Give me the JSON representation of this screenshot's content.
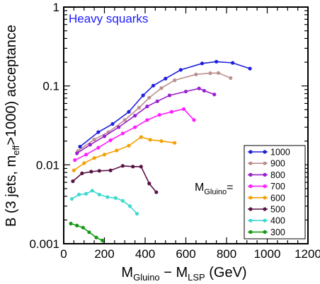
{
  "chart_data": {
    "type": "line",
    "annotation": "Heavy squarks",
    "xlabel": {
      "main": "M",
      "sub1": "Gluino",
      "mid": " − M",
      "sub2": "LSP",
      "tail": "  (GeV)"
    },
    "ylabel": {
      "pre": "B (3 jets, m",
      "sub": "eff",
      "post": ">1000) acceptance"
    },
    "xlim": [
      0,
      1200
    ],
    "ylim": [
      0.001,
      1
    ],
    "yscale": "log",
    "x_ticks": [
      "0",
      "200",
      "400",
      "600",
      "800",
      "1000",
      "1200"
    ],
    "y_ticks": [
      "1",
      "0.1",
      "0.01",
      "0.001"
    ],
    "legend_title": {
      "main": "M",
      "sub": "Gluino",
      "post": "="
    },
    "legend_position": "bottom-right",
    "series": [
      {
        "name": "1000",
        "color": "#1f1fdf",
        "x": [
          80,
          170,
          240,
          320,
          390,
          440,
          500,
          575,
          680,
          750,
          830,
          915
        ],
        "y": [
          0.017,
          0.026,
          0.033,
          0.047,
          0.076,
          0.101,
          0.124,
          0.16,
          0.193,
          0.203,
          0.196,
          0.166
        ]
      },
      {
        "name": "900",
        "color": "#bc8f8f",
        "x": [
          70,
          150,
          220,
          300,
          370,
          420,
          480,
          545,
          650,
          720,
          760,
          820
        ],
        "y": [
          0.015,
          0.021,
          0.026,
          0.037,
          0.053,
          0.071,
          0.094,
          0.118,
          0.14,
          0.145,
          0.146,
          0.126
        ]
      },
      {
        "name": "800",
        "color": "#9a1fcf",
        "x": [
          65,
          130,
          200,
          270,
          350,
          410,
          460,
          520,
          600,
          665,
          690,
          740
        ],
        "y": [
          0.014,
          0.018,
          0.023,
          0.03,
          0.042,
          0.055,
          0.064,
          0.076,
          0.085,
          0.093,
          0.087,
          0.078
        ]
      },
      {
        "name": "700",
        "color": "#ff1fff",
        "x": [
          55,
          110,
          170,
          230,
          290,
          350,
          410,
          470,
          530,
          590,
          640
        ],
        "y": [
          0.0115,
          0.0135,
          0.0165,
          0.0205,
          0.025,
          0.03,
          0.037,
          0.043,
          0.047,
          0.051,
          0.037
        ]
      },
      {
        "name": "600",
        "color": "#f5a000",
        "x": [
          50,
          100,
          150,
          200,
          260,
          320,
          380,
          425,
          480,
          545
        ],
        "y": [
          0.0085,
          0.0105,
          0.0122,
          0.0135,
          0.0152,
          0.0175,
          0.0225,
          0.0208,
          0.02,
          0.019
        ]
      },
      {
        "name": "500",
        "color": "#5a1245",
        "x": [
          45,
          90,
          135,
          175,
          230,
          290,
          340,
          380,
          420,
          455
        ],
        "y": [
          0.0062,
          0.0078,
          0.0082,
          0.0084,
          0.0085,
          0.0097,
          0.0095,
          0.0095,
          0.0058,
          0.0045
        ]
      },
      {
        "name": "400",
        "color": "#40d8d0",
        "x": [
          40,
          75,
          110,
          140,
          175,
          215,
          255,
          290,
          325,
          360
        ],
        "y": [
          0.0037,
          0.0042,
          0.0043,
          0.0047,
          0.0042,
          0.0039,
          0.0038,
          0.0035,
          0.003,
          0.0024
        ]
      },
      {
        "name": "300",
        "color": "#169a16",
        "x": [
          35,
          65,
          95,
          125,
          160,
          190,
          205
        ],
        "y": [
          0.0018,
          0.0017,
          0.0016,
          0.0014,
          0.0012,
          0.0011,
          0.00095
        ]
      }
    ]
  }
}
